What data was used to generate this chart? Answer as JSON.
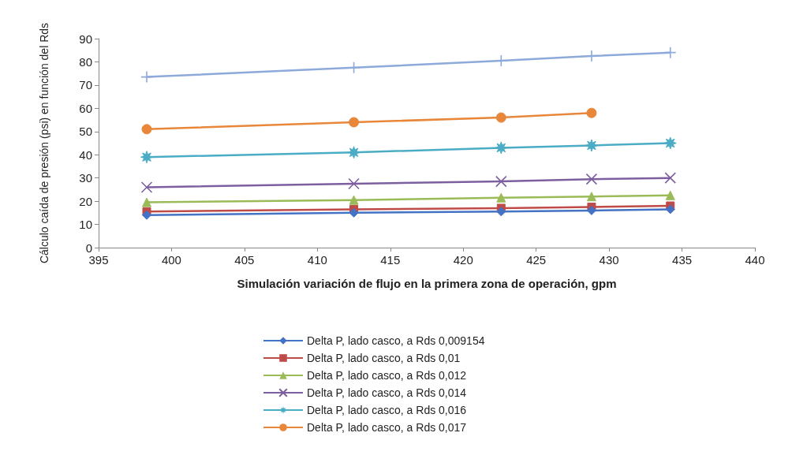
{
  "chart_data": {
    "type": "line",
    "xlabel": "Simulación variación de flujo en la primera zona de operación, gpm",
    "ylabel": "Cálculo caída de presión (psi) en función del Rds",
    "x": [
      398.3,
      412.5,
      422.6,
      428.8,
      434.2
    ],
    "xlim": [
      395,
      440
    ],
    "xticks": [
      395,
      400,
      405,
      410,
      415,
      420,
      425,
      430,
      435,
      440
    ],
    "ylim": [
      0,
      90
    ],
    "yticks": [
      0,
      10,
      20,
      30,
      40,
      50,
      60,
      70,
      80,
      90
    ],
    "grid": false,
    "legend": "bottom",
    "series": [
      {
        "name": "Delta P, lado casco, a Rds 0,009154",
        "color": "#4472c4",
        "marker": "diamond",
        "values": [
          14,
          15,
          15.5,
          16,
          16.5
        ]
      },
      {
        "name": "Delta P, lado casco, a Rds 0,01",
        "color": "#be4b48",
        "marker": "square",
        "values": [
          15.5,
          16.5,
          17,
          17.5,
          18
        ]
      },
      {
        "name": "Delta P, lado casco, a Rds 0,012",
        "color": "#9bbb59",
        "marker": "triangle",
        "values": [
          19.5,
          20.5,
          21.5,
          22,
          22.5
        ]
      },
      {
        "name": "Delta P, lado casco, a Rds 0,014",
        "color": "#7d5fa0",
        "marker": "cross",
        "values": [
          26,
          27.5,
          28.5,
          29.5,
          30
        ]
      },
      {
        "name": "Delta P, lado casco, a Rds 0,016",
        "color": "#4bacc6",
        "marker": "star",
        "values": [
          39,
          41,
          43,
          44,
          45
        ]
      },
      {
        "name": "Delta P, lado casco, a Rds 0,017",
        "color": "#e8873a",
        "marker": "circle",
        "values": [
          51,
          54,
          56,
          58,
          null
        ]
      },
      {
        "color": "#8ea9db",
        "marker": "plus",
        "values": [
          73.5,
          77.5,
          80.5,
          82.5,
          84
        ]
      }
    ]
  }
}
